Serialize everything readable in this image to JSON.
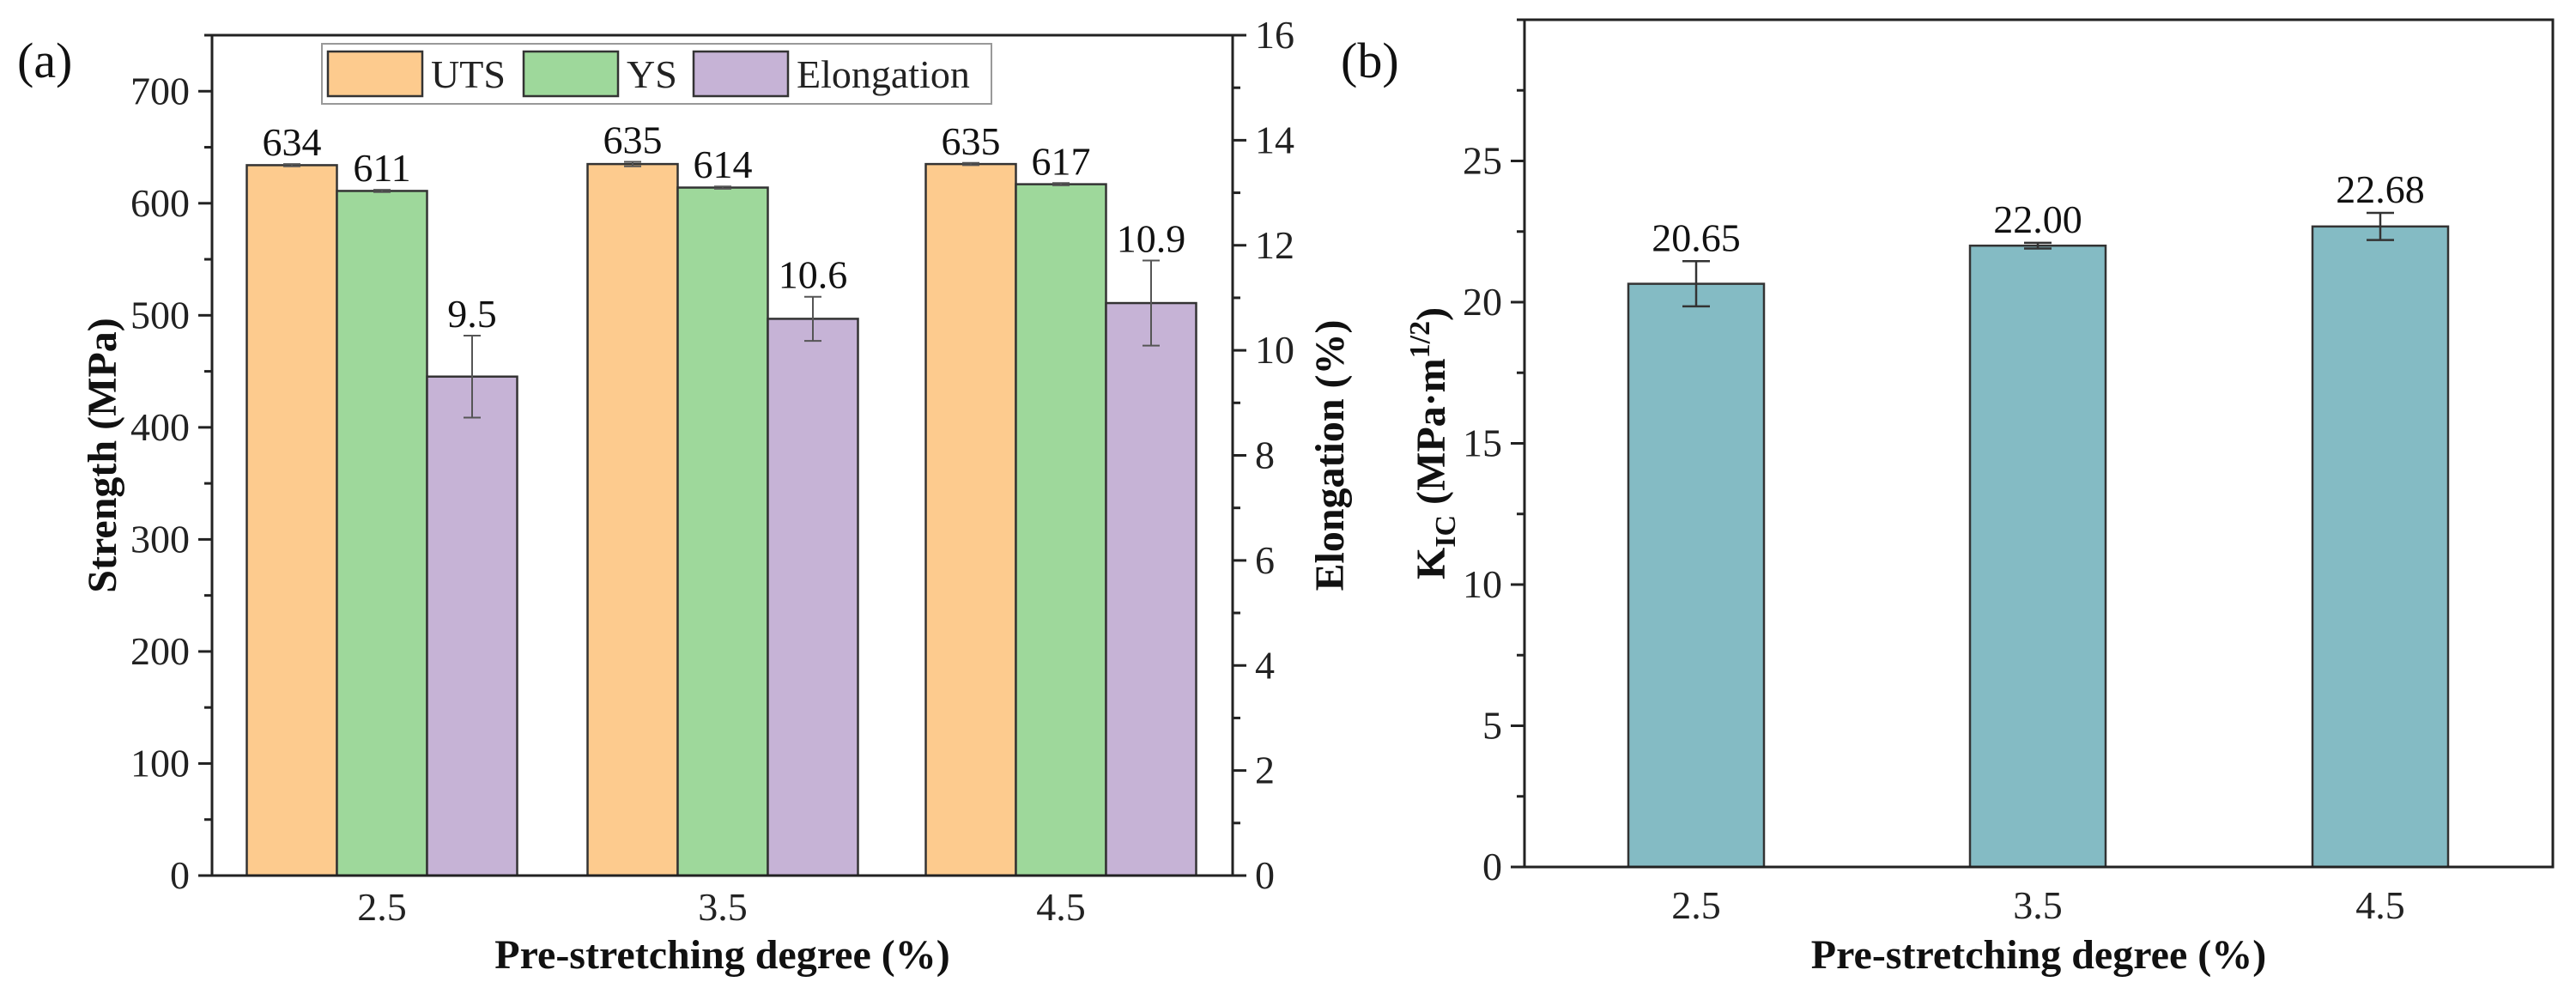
{
  "chart_data": [
    {
      "panel_label": "(a)",
      "type": "bar",
      "categories": [
        "2.5",
        "3.5",
        "4.5"
      ],
      "xlabel": "Pre-stretching degree (%)",
      "ylabel": "Strength (MPa)",
      "ylabel_right": "Elongation (%)",
      "ylim": [
        0,
        750
      ],
      "ylim_right": [
        0,
        16
      ],
      "yticks": [
        0,
        100,
        200,
        300,
        400,
        500,
        600,
        700
      ],
      "yticks_right": [
        0,
        2,
        4,
        6,
        8,
        10,
        12,
        14,
        16
      ],
      "legend_position": "top",
      "grid": false,
      "series": [
        {
          "name": "UTS",
          "axis": "left",
          "color": "#FDCB8E",
          "values": [
            634,
            635,
            635
          ],
          "errors": [
            1,
            2,
            1
          ],
          "labels": [
            "634",
            "635",
            "635"
          ]
        },
        {
          "name": "YS",
          "axis": "left",
          "color": "#9ED89B",
          "values": [
            611,
            614,
            617
          ],
          "errors": [
            1,
            1,
            1
          ],
          "labels": [
            "611",
            "614",
            "617"
          ]
        },
        {
          "name": "Elongation",
          "axis": "right",
          "color": "#C6B3D6",
          "values": [
            9.5,
            10.6,
            10.9
          ],
          "errors": [
            0.78,
            0.42,
            0.81
          ],
          "labels": [
            "9.5",
            "10.6",
            "10.9"
          ]
        }
      ]
    },
    {
      "panel_label": "(b)",
      "type": "bar",
      "categories": [
        "2.5",
        "3.5",
        "4.5"
      ],
      "xlabel": "Pre-stretching degree (%)",
      "ylabel": "K",
      "ylabel_sub": "IC",
      "ylabel_rest": " (MPa·m",
      "ylabel_sup": "1/2",
      "ylabel_end": ")",
      "ylim": [
        0,
        30
      ],
      "yticks": [
        0,
        5,
        10,
        15,
        20,
        25
      ],
      "grid": false,
      "series": [
        {
          "name": "KIC",
          "color": "#84BBC4",
          "values": [
            20.65,
            22.0,
            22.68
          ],
          "errors": [
            0.8,
            0.1,
            0.48
          ],
          "labels": [
            "20.65",
            "22.00",
            "22.68"
          ]
        }
      ]
    }
  ]
}
